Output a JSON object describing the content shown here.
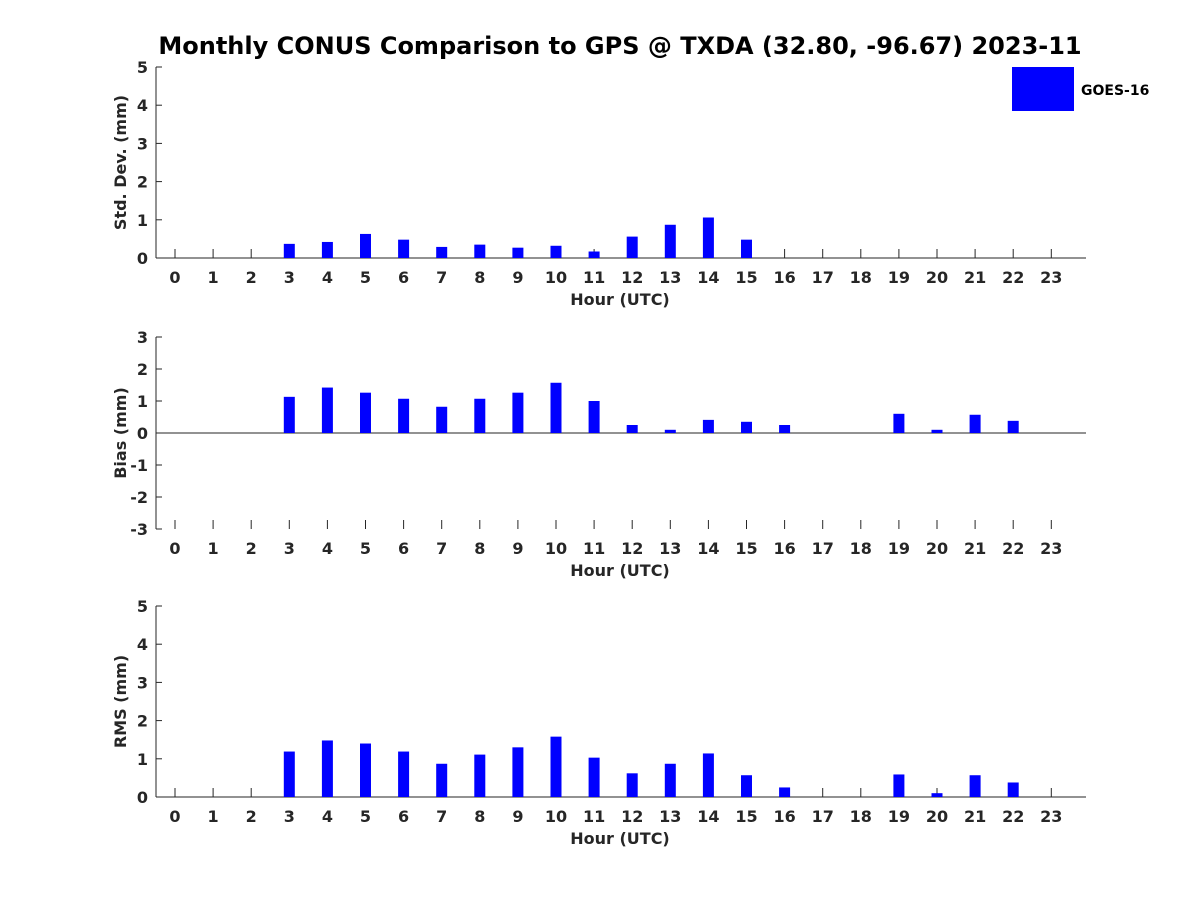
{
  "title": "Monthly CONUS Comparison to GPS @ TXDA (32.80, -96.67) 2023-11",
  "legend": {
    "label": "GOES-16",
    "color": "#0000ff",
    "placement": "top-right"
  },
  "chart_data": [
    {
      "type": "bar",
      "xlabel": "Hour (UTC)",
      "ylabel": "Std. Dev. (mm)",
      "ylim": [
        0,
        5
      ],
      "yticks": [
        "0",
        "1",
        "2",
        "3",
        "4",
        "5"
      ],
      "categories": [
        "0",
        "1",
        "2",
        "3",
        "4",
        "5",
        "6",
        "7",
        "8",
        "9",
        "10",
        "11",
        "12",
        "13",
        "14",
        "15",
        "16",
        "17",
        "18",
        "19",
        "20",
        "21",
        "22",
        "23"
      ],
      "series": [
        {
          "name": "GOES-16",
          "values": [
            null,
            null,
            null,
            0.37,
            0.42,
            0.63,
            0.48,
            0.29,
            0.35,
            0.27,
            0.32,
            0.17,
            0.56,
            0.87,
            1.06,
            0.48,
            null,
            null,
            null,
            null,
            null,
            null,
            null,
            null
          ]
        }
      ]
    },
    {
      "type": "bar",
      "xlabel": "Hour (UTC)",
      "ylabel": "Bias (mm)",
      "ylim": [
        -3,
        3
      ],
      "yticks": [
        "-3",
        "-2",
        "-1",
        "0",
        "1",
        "2",
        "3"
      ],
      "categories": [
        "0",
        "1",
        "2",
        "3",
        "4",
        "5",
        "6",
        "7",
        "8",
        "9",
        "10",
        "11",
        "12",
        "13",
        "14",
        "15",
        "16",
        "17",
        "18",
        "19",
        "20",
        "21",
        "22",
        "23"
      ],
      "series": [
        {
          "name": "GOES-16",
          "values": [
            null,
            null,
            null,
            1.13,
            1.42,
            1.26,
            1.07,
            0.82,
            1.07,
            1.26,
            1.57,
            1.0,
            0.25,
            0.1,
            0.41,
            0.35,
            0.25,
            null,
            null,
            0.6,
            0.1,
            0.57,
            0.38,
            null
          ]
        }
      ]
    },
    {
      "type": "bar",
      "xlabel": "Hour (UTC)",
      "ylabel": "RMS (mm)",
      "ylim": [
        0,
        5
      ],
      "yticks": [
        "0",
        "1",
        "2",
        "3",
        "4",
        "5"
      ],
      "categories": [
        "0",
        "1",
        "2",
        "3",
        "4",
        "5",
        "6",
        "7",
        "8",
        "9",
        "10",
        "11",
        "12",
        "13",
        "14",
        "15",
        "16",
        "17",
        "18",
        "19",
        "20",
        "21",
        "22",
        "23"
      ],
      "series": [
        {
          "name": "GOES-16",
          "values": [
            null,
            null,
            null,
            1.19,
            1.48,
            1.4,
            1.19,
            0.87,
            1.11,
            1.3,
            1.58,
            1.03,
            0.62,
            0.87,
            1.14,
            0.57,
            0.25,
            null,
            null,
            0.59,
            0.1,
            0.57,
            0.38,
            null
          ]
        }
      ]
    }
  ]
}
